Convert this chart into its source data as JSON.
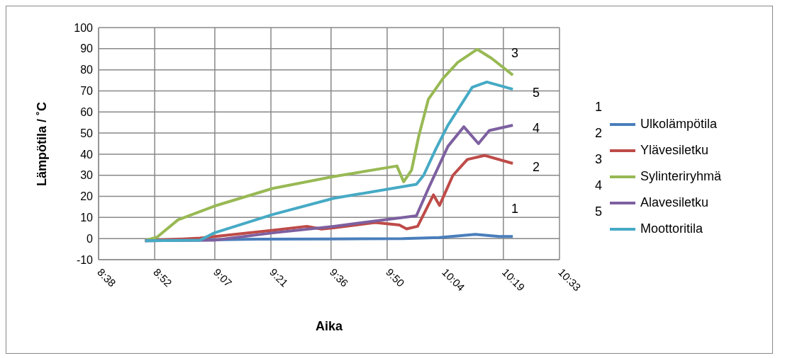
{
  "chart_data": {
    "type": "line",
    "xlabel": "Aika",
    "ylabel": "Lämpötila / ˚C",
    "xlim": [
      8.6333,
      10.55
    ],
    "xticks": [
      {
        "value": 8.6333,
        "label": "8:38"
      },
      {
        "value": 8.8667,
        "label": "8:52"
      },
      {
        "value": 9.1167,
        "label": "9:07"
      },
      {
        "value": 9.35,
        "label": "9:21"
      },
      {
        "value": 9.6,
        "label": "9:36"
      },
      {
        "value": 9.8333,
        "label": "9:50"
      },
      {
        "value": 10.0667,
        "label": "10:04"
      },
      {
        "value": 10.3167,
        "label": "10:19"
      },
      {
        "value": 10.55,
        "label": "10:33"
      }
    ],
    "ylim": [
      -10,
      100
    ],
    "yticks": [
      -10,
      0,
      10,
      20,
      30,
      40,
      50,
      60,
      70,
      80,
      90,
      100
    ],
    "grid": true,
    "legend": "right",
    "line_style": "solid",
    "series": [
      {
        "name": "Ulkolämpötila",
        "color": "#4a7ebb",
        "x": [
          8.827,
          9.1,
          9.3,
          9.6,
          9.9,
          10.05,
          10.2,
          10.3,
          10.356
        ],
        "values": [
          -1,
          -0.6,
          -0.3,
          -0.2,
          0,
          0.5,
          2,
          1,
          1
        ]
      },
      {
        "name": "Ylävesiletku",
        "color": "#be4b48",
        "x": [
          8.827,
          9.055,
          9.358,
          9.5,
          9.56,
          9.611,
          9.783,
          9.884,
          9.914,
          9.96,
          10.026,
          10.051,
          10.107,
          10.167,
          10.238,
          10.356
        ],
        "values": [
          -1,
          0.2,
          3.9,
          5.8,
          4.5,
          5.1,
          7.6,
          6.4,
          4.6,
          5.8,
          20.7,
          15.7,
          30,
          37.5,
          39.4,
          35.6
        ]
      },
      {
        "name": "Sylinteriryhmä",
        "color": "#98b954",
        "x": [
          8.827,
          8.878,
          8.964,
          9.115,
          9.358,
          9.611,
          9.874,
          9.902,
          9.935,
          9.965,
          10.005,
          10.066,
          10.127,
          10.208,
          10.268,
          10.356
        ],
        "values": [
          -1,
          0.8,
          8.9,
          15.4,
          23.8,
          29.4,
          34.4,
          26.9,
          32.5,
          48.7,
          66.1,
          76,
          83.5,
          89.7,
          85.4,
          77.5
        ]
      },
      {
        "name": "Alavesiletku",
        "color": "#7d60a0",
        "x": [
          8.827,
          9.115,
          9.358,
          9.611,
          9.955,
          10.005,
          10.086,
          10.152,
          10.213,
          10.258,
          10.356
        ],
        "values": [
          -1,
          -0.8,
          2.7,
          5.8,
          10.8,
          23.8,
          43.7,
          53,
          45,
          51.2,
          53.7
        ]
      },
      {
        "name": "Moottoritila",
        "color": "#46aac5",
        "x": [
          8.827,
          9.055,
          9.115,
          9.358,
          9.611,
          9.955,
          9.985,
          10.036,
          10.086,
          10.187,
          10.248,
          10.356
        ],
        "values": [
          -1,
          -0.8,
          2.7,
          11.4,
          19.1,
          25.7,
          30,
          42.5,
          53.7,
          71.7,
          74.2,
          70.8
        ]
      }
    ],
    "annotations": [
      "3",
      "5",
      "4",
      "2",
      "1",
      "1",
      "2",
      "3",
      "4",
      "5"
    ]
  }
}
